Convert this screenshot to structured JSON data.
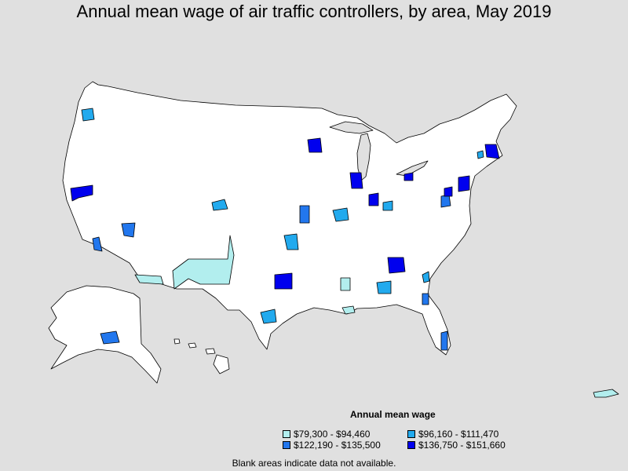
{
  "title": "Annual mean wage of air traffic controllers, by area, May 2019",
  "legend": {
    "title": "Annual mean wage",
    "items": [
      {
        "label": "$79,300 - $94,460",
        "color": "#b2eeee"
      },
      {
        "label": "$96,160 - $111,470",
        "color": "#22aaee"
      },
      {
        "label": "$122,190 - $135,500",
        "color": "#2277ee"
      },
      {
        "label": "$136,750 - $151,660",
        "color": "#0000ee"
      }
    ]
  },
  "footnote": "Blank areas indicate data not available.",
  "colors": {
    "background": "#e0e0e0",
    "land": "#ffffff",
    "border": "#000000"
  }
}
